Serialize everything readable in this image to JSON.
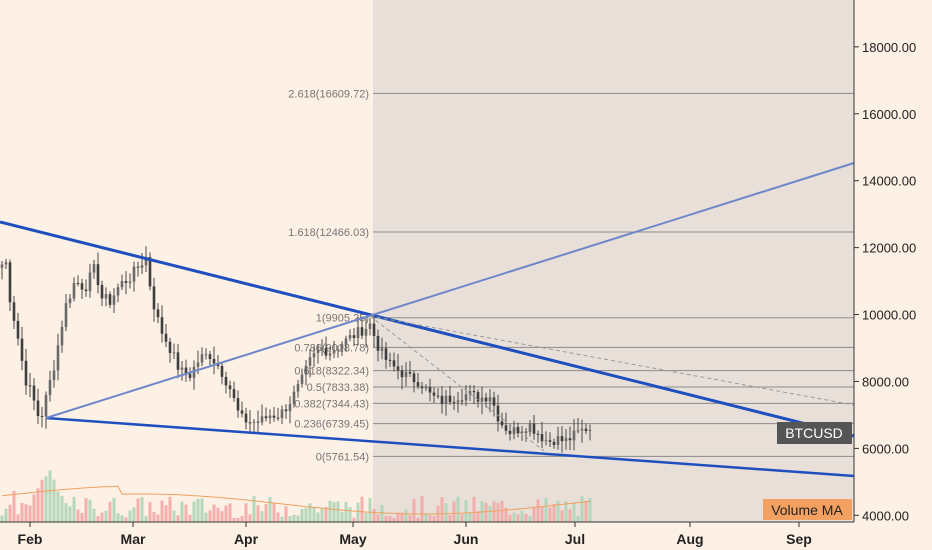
{
  "chart_data": {
    "type": "candlestick",
    "symbol": "BTCUSD",
    "volume_label": "Volume MA",
    "x_ticks": [
      "Feb",
      "Mar",
      "Apr",
      "May",
      "Jun",
      "Jul",
      "Aug",
      "Sep"
    ],
    "y_ticks": [
      "4000.00",
      "6000.00",
      "8000.00",
      "10000.00",
      "12000.00",
      "14000.00",
      "16000.00",
      "18000.00"
    ],
    "y_tick_values": [
      4000,
      6000,
      8000,
      10000,
      12000,
      14000,
      16000,
      18000
    ],
    "ylim": [
      3800,
      19400
    ],
    "fib_levels": [
      {
        "label": "2.618(16609.72)",
        "value": 16609.72
      },
      {
        "label": "1.618(12466.03)",
        "value": 12466.03
      },
      {
        "label": "1(9905.25)",
        "value": 9905.25
      },
      {
        "label": "0.786(9018.78)",
        "value": 9018.78
      },
      {
        "label": "0.618(8322.34)",
        "value": 8322.34
      },
      {
        "label": "0.5(7833.38)",
        "value": 7833.38
      },
      {
        "label": "0.382(7344.43)",
        "value": 7344.43
      },
      {
        "label": "0.236(6739.45)",
        "value": 6739.45
      },
      {
        "label": "0(5761.54)",
        "value": 5761.54
      }
    ],
    "colors": {
      "background": "#fdf0e4",
      "fib_zone": "#e8e0d8",
      "trendline": "#1f4fbf",
      "trendline_light": "#6f86cc",
      "candle": "#4a4a4a",
      "volume_up": "#a8d4b4",
      "volume_down": "#f2a5a5",
      "volume_ma": "#f0a060",
      "symbol_badge": "#555555",
      "volume_badge": "#f4a060"
    }
  }
}
